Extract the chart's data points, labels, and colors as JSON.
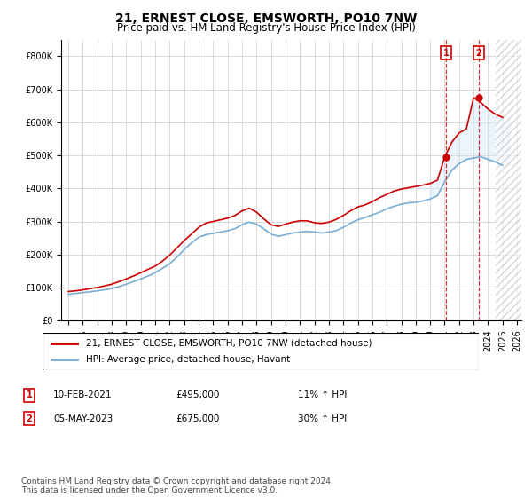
{
  "title": "21, ERNEST CLOSE, EMSWORTH, PO10 7NW",
  "subtitle": "Price paid vs. HM Land Registry's House Price Index (HPI)",
  "ylim": [
    0,
    850000
  ],
  "yticks": [
    0,
    100000,
    200000,
    300000,
    400000,
    500000,
    600000,
    700000,
    800000
  ],
  "ytick_labels": [
    "£0",
    "£100K",
    "£200K",
    "£300K",
    "£400K",
    "£500K",
    "£600K",
    "£700K",
    "£800K"
  ],
  "legend_line1": "21, ERNEST CLOSE, EMSWORTH, PO10 7NW (detached house)",
  "legend_line2": "HPI: Average price, detached house, Havant",
  "annotation1_date": "10-FEB-2021",
  "annotation1_price": "£495,000",
  "annotation1_hpi": "11% ↑ HPI",
  "annotation2_date": "05-MAY-2023",
  "annotation2_price": "£675,000",
  "annotation2_hpi": "30% ↑ HPI",
  "footnote": "Contains HM Land Registry data © Crown copyright and database right 2024.\nThis data is licensed under the Open Government Licence v3.0.",
  "line1_color": "#cc0000",
  "line2_color": "#7aadd4",
  "annotation_box_color": "#cc0000",
  "shade_color": "#d0e8f8",
  "vline_color": "#cc0000",
  "background_color": "#ffffff",
  "grid_color": "#cccccc",
  "title_fontsize": 10,
  "subtitle_fontsize": 8.5,
  "tick_fontsize": 7,
  "legend_fontsize": 7.5,
  "annotation_fontsize": 7.5,
  "footnote_fontsize": 6.5,
  "x_start_year": 1995,
  "x_end_year": 2026,
  "sale1_year": 2021.1,
  "sale1_price": 495000,
  "sale2_year": 2023.35,
  "sale2_price": 675000,
  "hpi_years": [
    1995,
    1995.5,
    1996,
    1996.5,
    1997,
    1997.5,
    1998,
    1998.5,
    1999,
    1999.5,
    2000,
    2000.5,
    2001,
    2001.5,
    2002,
    2002.5,
    2003,
    2003.5,
    2004,
    2004.5,
    2005,
    2005.5,
    2006,
    2006.5,
    2007,
    2007.5,
    2008,
    2008.5,
    2009,
    2009.5,
    2010,
    2010.5,
    2011,
    2011.5,
    2012,
    2012.5,
    2013,
    2013.5,
    2014,
    2014.5,
    2015,
    2015.5,
    2016,
    2016.5,
    2017,
    2017.5,
    2018,
    2018.5,
    2019,
    2019.5,
    2020,
    2020.5,
    2021,
    2021.5,
    2022,
    2022.5,
    2023,
    2023.5,
    2024,
    2024.5,
    2025
  ],
  "hpi_values": [
    80000,
    82000,
    85000,
    87000,
    90000,
    93000,
    97000,
    103000,
    110000,
    118000,
    126000,
    135000,
    145000,
    158000,
    172000,
    192000,
    215000,
    235000,
    252000,
    260000,
    264000,
    268000,
    272000,
    278000,
    290000,
    298000,
    292000,
    278000,
    262000,
    255000,
    260000,
    265000,
    268000,
    270000,
    268000,
    265000,
    268000,
    272000,
    282000,
    295000,
    305000,
    312000,
    320000,
    328000,
    338000,
    346000,
    352000,
    356000,
    358000,
    362000,
    368000,
    378000,
    420000,
    455000,
    475000,
    488000,
    492000,
    496000,
    488000,
    480000,
    470000
  ],
  "price_years": [
    1995,
    1995.5,
    1996,
    1996.5,
    1997,
    1997.5,
    1998,
    1998.5,
    1999,
    1999.5,
    2000,
    2000.5,
    2001,
    2001.5,
    2002,
    2002.5,
    2003,
    2003.5,
    2004,
    2004.5,
    2005,
    2005.5,
    2006,
    2006.5,
    2007,
    2007.5,
    2008,
    2008.5,
    2009,
    2009.5,
    2010,
    2010.5,
    2011,
    2011.5,
    2012,
    2012.5,
    2013,
    2013.5,
    2014,
    2014.5,
    2015,
    2015.5,
    2016,
    2016.5,
    2017,
    2017.5,
    2018,
    2018.5,
    2019,
    2019.5,
    2020,
    2020.5,
    2021,
    2021.5,
    2022,
    2022.5,
    2023,
    2023.5,
    2024,
    2024.5,
    2025
  ],
  "price_values": [
    88000,
    90000,
    93000,
    97000,
    100000,
    105000,
    110000,
    118000,
    126000,
    135000,
    145000,
    155000,
    165000,
    180000,
    198000,
    220000,
    242000,
    262000,
    282000,
    295000,
    300000,
    305000,
    310000,
    318000,
    332000,
    340000,
    328000,
    308000,
    290000,
    285000,
    292000,
    298000,
    302000,
    302000,
    296000,
    294000,
    298000,
    306000,
    318000,
    332000,
    344000,
    350000,
    360000,
    372000,
    382000,
    392000,
    398000,
    402000,
    406000,
    410000,
    415000,
    425000,
    495000,
    540000,
    568000,
    580000,
    675000,
    660000,
    640000,
    625000,
    615000
  ]
}
